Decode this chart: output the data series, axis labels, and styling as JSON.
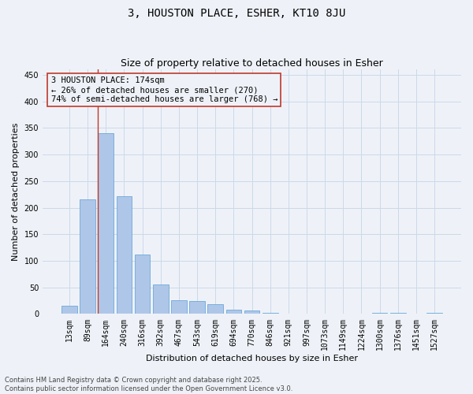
{
  "title": "3, HOUSTON PLACE, ESHER, KT10 8JU",
  "subtitle": "Size of property relative to detached houses in Esher",
  "xlabel": "Distribution of detached houses by size in Esher",
  "ylabel": "Number of detached properties",
  "categories": [
    "13sqm",
    "89sqm",
    "164sqm",
    "240sqm",
    "316sqm",
    "392sqm",
    "467sqm",
    "543sqm",
    "619sqm",
    "694sqm",
    "770sqm",
    "846sqm",
    "921sqm",
    "997sqm",
    "1073sqm",
    "1149sqm",
    "1224sqm",
    "1300sqm",
    "1376sqm",
    "1451sqm",
    "1527sqm"
  ],
  "values": [
    15,
    215,
    340,
    222,
    112,
    55,
    26,
    25,
    19,
    8,
    6,
    2,
    1,
    1,
    1,
    0,
    0,
    2,
    2,
    0,
    2
  ],
  "bar_color": "#aec6e8",
  "bar_edge_color": "#5a9fd4",
  "vline_index": 2,
  "vline_color": "#c0392b",
  "annotation_text": "3 HOUSTON PLACE: 174sqm\n← 26% of detached houses are smaller (270)\n74% of semi-detached houses are larger (768) →",
  "annotation_box_color": "#c0392b",
  "annotation_fontsize": 7.5,
  "grid_color": "#ccd9e8",
  "bg_color": "#eef2f8",
  "ylim": [
    0,
    460
  ],
  "yticks": [
    0,
    50,
    100,
    150,
    200,
    250,
    300,
    350,
    400,
    450
  ],
  "title_fontsize": 10,
  "subtitle_fontsize": 9,
  "xlabel_fontsize": 8,
  "ylabel_fontsize": 8,
  "tick_fontsize": 7,
  "footer_text": "Contains HM Land Registry data © Crown copyright and database right 2025.\nContains public sector information licensed under the Open Government Licence v3.0."
}
